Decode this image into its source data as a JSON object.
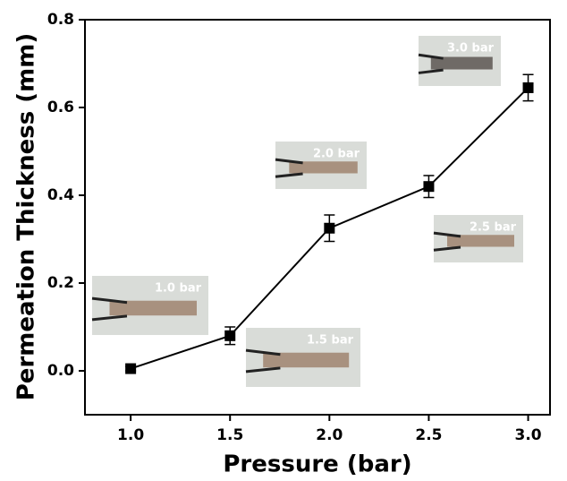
{
  "chart_data": {
    "type": "line",
    "xlabel": "Pressure (bar)",
    "ylabel": "Permeation Thickness (mm)",
    "x": [
      1.0,
      1.5,
      2.0,
      2.5,
      3.0
    ],
    "values": [
      0.005,
      0.08,
      0.325,
      0.42,
      0.645
    ],
    "errors": [
      0.005,
      0.02,
      0.03,
      0.025,
      0.03
    ],
    "color": "#000000",
    "xlim": [
      0.77,
      3.11
    ],
    "ylim": [
      -0.1,
      0.8
    ],
    "xticks": [
      {
        "value": 1,
        "label": "1.0"
      },
      {
        "value": 1.5,
        "label": "1.5"
      },
      {
        "value": 2,
        "label": "2.0"
      },
      {
        "value": 2.5,
        "label": "2.5"
      },
      {
        "value": 3,
        "label": "3.0"
      }
    ],
    "yticks": [
      {
        "value": 0,
        "label": "0.0"
      },
      0.2,
      0.4,
      0.6,
      0.8
    ],
    "annotations": [
      "1.0 bar",
      "1.5 bar",
      "2.0 bar",
      "2.5 bar",
      "3.0 bar"
    ]
  }
}
